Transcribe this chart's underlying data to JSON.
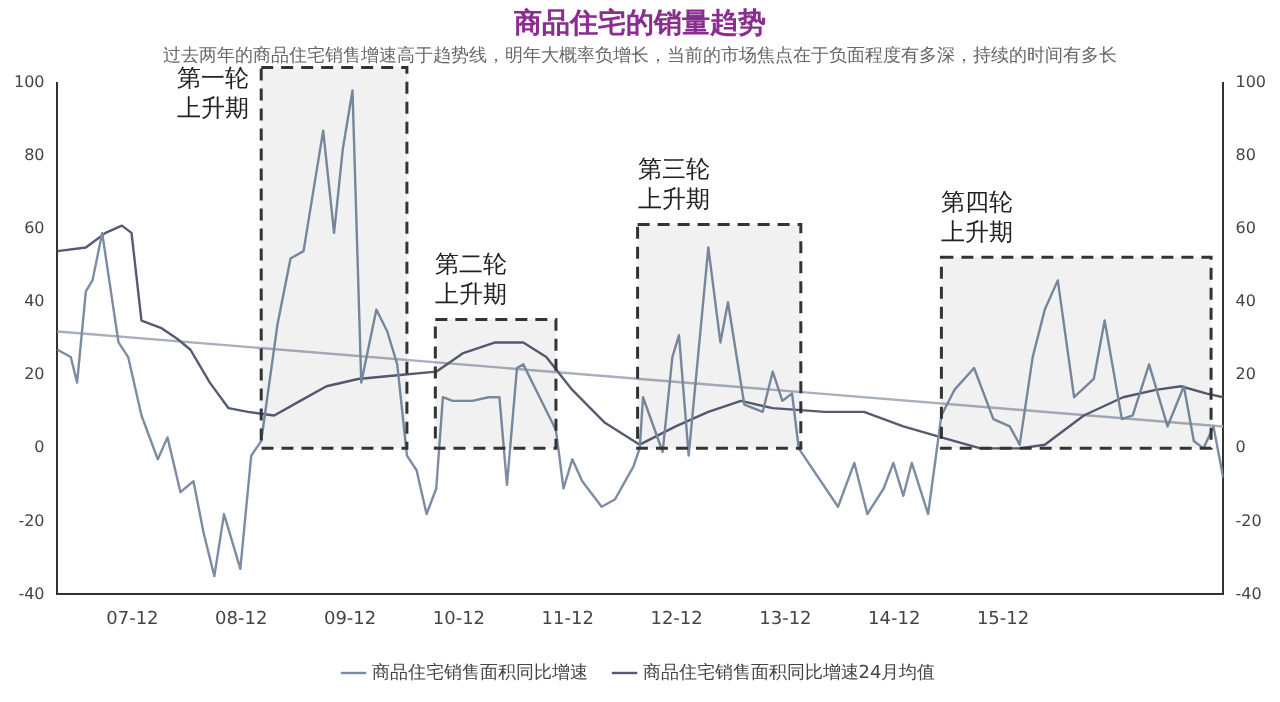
{
  "chart_data": {
    "type": "line",
    "title": "商品住宅的销量趋势",
    "subtitle": "过去两年的商品住宅销售增速高于趋势线，明年大概率负增长，当前的市场焦点在于负面程度有多深，持续的时间有多长",
    "xlim": [
      "2007-03-20",
      "2017-12-10"
    ],
    "xticks": [
      {
        "value": "2007-12",
        "label": "07-12"
      },
      {
        "value": "2008-12",
        "label": "08-12"
      },
      {
        "value": "2009-12",
        "label": "09-12"
      },
      {
        "value": "2010-12",
        "label": "10-12"
      },
      {
        "value": "2011-12",
        "label": "11-12"
      },
      {
        "value": "2012-12",
        "label": "12-12"
      },
      {
        "value": "2013-12",
        "label": "13-12"
      },
      {
        "value": "2014-12",
        "label": "14-12"
      },
      {
        "value": "2015-12",
        "label": "15-12"
      }
    ],
    "ylim": [
      -40,
      100
    ],
    "yticks": [
      -40,
      -20,
      0,
      20,
      40,
      60,
      80,
      100
    ],
    "y2lim": [
      -40,
      100
    ],
    "y2ticks": [
      -40,
      -20,
      0,
      20,
      40,
      60,
      80,
      100
    ],
    "grid": false,
    "legend": "bottom",
    "marker": "none",
    "line_style": "solid",
    "series": [
      {
        "name": "商品住宅销售面积同比增速",
        "color": "#7d8ca3",
        "x": [
          "2007-03-23",
          "2007-05-07",
          "2007-05-28",
          "2007-06-27",
          "2007-07-19",
          "2007-08-21",
          "2007-10-15",
          "2007-11-17",
          "2008-01-01",
          "2008-02-25",
          "2008-03-27",
          "2008-05-10",
          "2008-06-23",
          "2008-07-26",
          "2008-09-02",
          "2008-10-04",
          "2008-11-28",
          "2009-01-04",
          "2009-02-07",
          "2009-04-01",
          "2009-05-14",
          "2009-06-27",
          "2009-09-02",
          "2009-10-08",
          "2009-11-07",
          "2009-12-09",
          "2010-01-08",
          "2010-02-28",
          "2010-04-04",
          "2010-05-07",
          "2010-06-09",
          "2010-07-11",
          "2010-08-14",
          "2010-09-16",
          "2010-10-08",
          "2010-11-10",
          "2011-01-15",
          "2011-03-09",
          "2011-04-15",
          "2011-05-10",
          "2011-06-13",
          "2011-07-04",
          "2011-08-28",
          "2011-10-22",
          "2011-11-17",
          "2011-12-16",
          "2012-01-19",
          "2012-03-23",
          "2012-05-07",
          "2012-07-08",
          "2012-07-29",
          "2012-08-10",
          "2012-10-15",
          "2012-11-17",
          "2012-12-09",
          "2013-01-11",
          "2013-03-16",
          "2013-04-26",
          "2013-05-21",
          "2013-07-15",
          "2013-09-16",
          "2013-10-19",
          "2013-11-21",
          "2013-12-23",
          "2014-01-15",
          "2014-05-25",
          "2014-07-19",
          "2014-09-02",
          "2014-10-26",
          "2014-11-28",
          "2015-01-01",
          "2015-01-29",
          "2015-03-23",
          "2015-05-07",
          "2015-06-20",
          "2015-08-25",
          "2015-10-29",
          "2015-12-23",
          "2016-01-26",
          "2016-03-09",
          "2016-04-19",
          "2016-06-02",
          "2016-07-26",
          "2016-10-01",
          "2016-11-07",
          "2017-01-04",
          "2017-02-10",
          "2017-04-04",
          "2017-06-05",
          "2017-07-29",
          "2017-09-02",
          "2017-10-04",
          "2017-11-07",
          "2017-12-09"
        ],
        "values": [
          27,
          25,
          18,
          43,
          46,
          59,
          29,
          25,
          9,
          -3,
          3,
          -12,
          -9,
          -23,
          -35,
          -18,
          -33,
          -2,
          2,
          34,
          52,
          54,
          87,
          59,
          82,
          98,
          18,
          38,
          32,
          23,
          -2,
          -6,
          -18,
          -11,
          14,
          13,
          13,
          14,
          14,
          -10,
          22,
          23,
          14,
          5,
          -11,
          -3,
          -9,
          -16,
          -14,
          -5,
          0,
          14,
          -1,
          25,
          31,
          -2,
          55,
          29,
          40,
          12,
          10,
          21,
          13,
          15,
          0,
          -16,
          -4,
          -18,
          -11,
          -4,
          -13,
          -4,
          -18,
          9,
          16,
          22,
          8,
          6,
          1,
          25,
          38,
          46,
          14,
          19,
          35,
          8,
          9,
          23,
          6,
          17,
          2,
          0,
          6,
          -8
        ]
      },
      {
        "name": "商品住宅销售面积同比增速24月均值",
        "color": "#555b70",
        "x": [
          "2007-03-23",
          "2007-06-27",
          "2007-09-02",
          "2007-10-26",
          "2007-11-28",
          "2008-01-01",
          "2008-03-05",
          "2008-04-29",
          "2008-06-13",
          "2008-08-17",
          "2008-10-19",
          "2008-12-23",
          "2009-03-20",
          "2009-06-16",
          "2009-09-13",
          "2009-12-27",
          "2010-05-07",
          "2010-09-16",
          "2010-12-13",
          "2011-04-01",
          "2011-07-04",
          "2011-09-20",
          "2011-12-16",
          "2012-04-04",
          "2012-07-29",
          "2012-11-28",
          "2013-03-16",
          "2013-07-04",
          "2013-10-19",
          "2014-04-11",
          "2014-08-21",
          "2015-01-01",
          "2015-05-07",
          "2015-09-16",
          "2016-01-26",
          "2016-04-19",
          "2016-08-28",
          "2017-01-08",
          "2017-04-26",
          "2017-07-19",
          "2017-10-15",
          "2017-12-09"
        ],
        "values": [
          54,
          55,
          59,
          61,
          59,
          35,
          33,
          30,
          27,
          18,
          11,
          10,
          9,
          13,
          17,
          19,
          20,
          21,
          26,
          29,
          29,
          25,
          16,
          7,
          1,
          6,
          10,
          13,
          11,
          10,
          10,
          6,
          3,
          0,
          0,
          1,
          9,
          14,
          16,
          17,
          15,
          14
        ]
      },
      {
        "type": "line",
        "color": "#a9b0bd",
        "x": [
          "2007-03-23",
          "2017-12-09"
        ],
        "values": [
          32,
          6
        ]
      }
    ],
    "bands": [
      {
        "axis": "x",
        "from": "2009-02-07",
        "to": "2010-06-09",
        "label": "第一轮上升期",
        "color": "#333333"
      },
      {
        "axis": "x",
        "from": "2010-09-13",
        "to": "2011-10-22",
        "label": "第二轮上升期",
        "color": "#333333"
      },
      {
        "axis": "x",
        "from": "2012-07-22",
        "to": "2014-01-22",
        "label": "第三轮上升期",
        "color": "#333333"
      },
      {
        "axis": "x",
        "from": "2015-05-07",
        "to": "2017-10-29",
        "label": "第四轮上升期",
        "color": "#333333"
      }
    ]
  }
}
